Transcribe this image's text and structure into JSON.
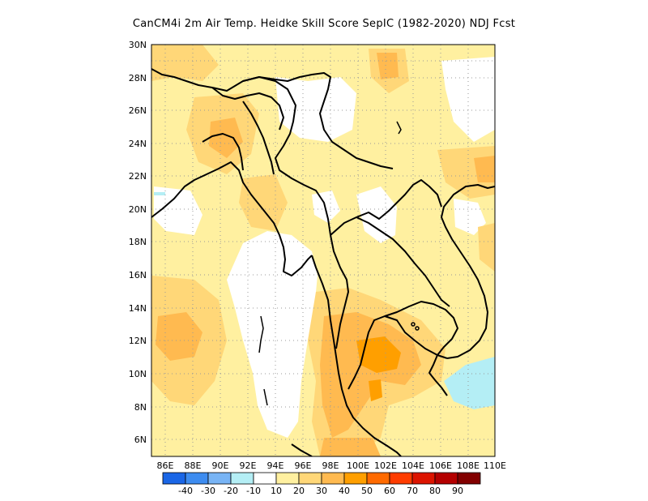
{
  "title": "CanCM4i  2m Air Temp. Heidke Skill Score SepIC (1982-2020) NDJ Fcst",
  "lat_labels": [
    "30N",
    "28N",
    "26N",
    "24N",
    "22N",
    "20N",
    "18N",
    "16N",
    "14N",
    "12N",
    "10N",
    "8N",
    "6N"
  ],
  "lon_labels": [
    "86E",
    "88E",
    "90E",
    "92E",
    "94E",
    "96E",
    "98E",
    "100E",
    "102E",
    "104E",
    "106E",
    "108E",
    "110E"
  ],
  "colorbar": {
    "labels": [
      "-40",
      "-30",
      "-20",
      "-10",
      "10",
      "20",
      "30",
      "40",
      "50",
      "60",
      "70",
      "80",
      "90"
    ],
    "colors": [
      "#1a66e6",
      "#3d8cf0",
      "#78b4f5",
      "#b4eef5",
      "#ffffff",
      "#fff0a0",
      "#ffd778",
      "#ffba50",
      "#ff9f00",
      "#ff6a00",
      "#ff3c00",
      "#dc1400",
      "#b40000",
      "#820000"
    ]
  },
  "field_colors": {
    "white": "#ffffff",
    "light_yellow": "#fff0a0",
    "yellow_orange": "#ffd778",
    "orange": "#ffba50",
    "dark_orange": "#ff9f00",
    "cyan": "#b4eef5"
  },
  "map": {
    "lon_range": [
      85,
      110
    ],
    "lat_range": [
      5,
      30
    ],
    "grid": true
  }
}
